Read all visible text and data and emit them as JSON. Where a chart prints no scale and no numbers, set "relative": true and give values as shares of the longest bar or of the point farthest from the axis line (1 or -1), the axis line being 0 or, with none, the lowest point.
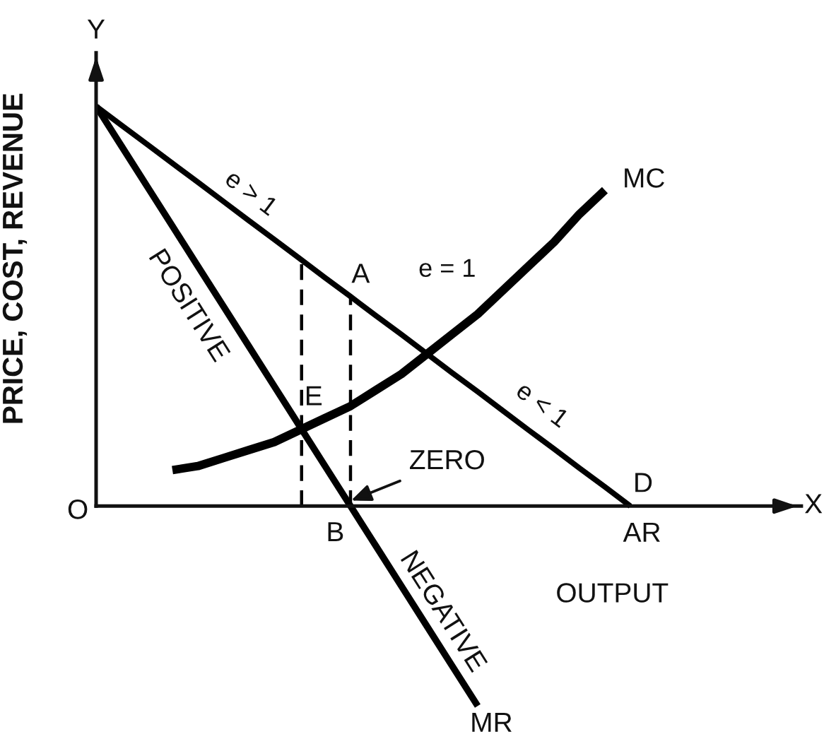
{
  "chart_data": {
    "type": "line",
    "relative": true,
    "xlabel": "OUTPUT",
    "ylabel": "PRICE, COST, REVENUE",
    "categories": [
      null,
      null,
      null,
      null,
      null,
      null,
      null,
      null,
      null,
      null,
      null,
      null,
      null,
      null,
      null,
      null,
      null,
      null,
      null,
      null,
      null,
      null
    ],
    "series": [
      {
        "name": "AR",
        "color": "#000000",
        "values": [
          1.0,
          0.952,
          0.905,
          0.857,
          0.81,
          0.762,
          0.714,
          0.667,
          0.619,
          0.571,
          0.524,
          0.476,
          0.429,
          0.381,
          0.333,
          0.286,
          0.238,
          0.19,
          0.143,
          0.095,
          0.048,
          0.0
        ]
      },
      {
        "name": "MR",
        "color": "#000000",
        "values": [
          1.0,
          0.9,
          0.8,
          0.7,
          0.6,
          0.5,
          0.4,
          0.3,
          0.2,
          0.1,
          0.0,
          -0.1,
          -0.2,
          -0.3,
          -0.4,
          -0.5,
          null,
          null,
          null,
          null,
          null,
          null
        ]
      },
      {
        "name": "MC",
        "color": "#000000",
        "values": [
          null,
          null,
          null,
          0.09,
          0.1,
          0.12,
          0.14,
          0.16,
          0.19,
          0.22,
          0.25,
          0.29,
          0.33,
          0.38,
          0.43,
          0.48,
          0.54,
          0.6,
          0.66,
          0.73,
          0.79,
          null
        ]
      }
    ],
    "annotations": [
      "Y",
      "X",
      "O",
      "e > 1",
      "e = 1",
      "e < 1",
      "A",
      "E",
      "B",
      "D",
      "ZERO",
      "POSITIVE",
      "NEGATIVE"
    ]
  }
}
